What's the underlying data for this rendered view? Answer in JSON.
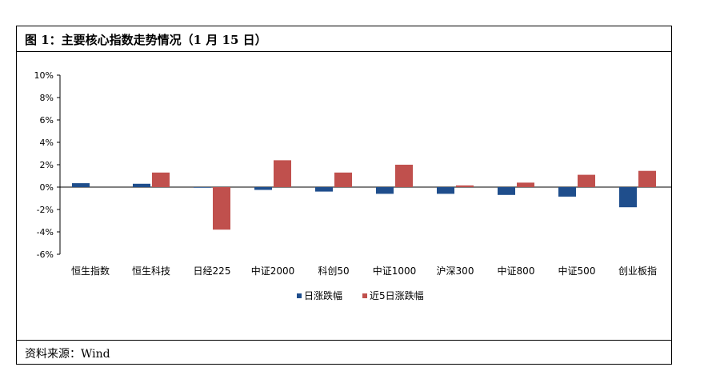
{
  "title": "图 1：主要核心指数走势情况（1 月 15 日）",
  "source": "资料来源：Wind",
  "chart_data": {
    "type": "bar",
    "categories": [
      "恒生指数",
      "恒生科技",
      "日经225",
      "中证2000",
      "科创50",
      "中证1000",
      "沪深300",
      "中证800",
      "中证500",
      "创业板指"
    ],
    "series": [
      {
        "name": "日涨跌幅",
        "color": "#1f4e8c",
        "values": [
          0.35,
          0.3,
          -0.05,
          -0.25,
          -0.4,
          -0.6,
          -0.6,
          -0.7,
          -0.85,
          -1.8
        ]
      },
      {
        "name": "近5日涨跌幅",
        "color": "#c0504d",
        "values": [
          0.0,
          1.3,
          -3.8,
          2.4,
          1.3,
          2.0,
          0.15,
          0.4,
          1.1,
          1.45
        ]
      }
    ],
    "ylim": [
      -6,
      10
    ],
    "yticks": [
      10,
      8,
      6,
      4,
      2,
      0,
      -2,
      -4,
      -6
    ],
    "ytick_labels": [
      "10%",
      "8%",
      "6%",
      "4%",
      "2%",
      "0%",
      "-2%",
      "-4%",
      "-6%"
    ],
    "legend_position": "bottom",
    "grid": false
  }
}
